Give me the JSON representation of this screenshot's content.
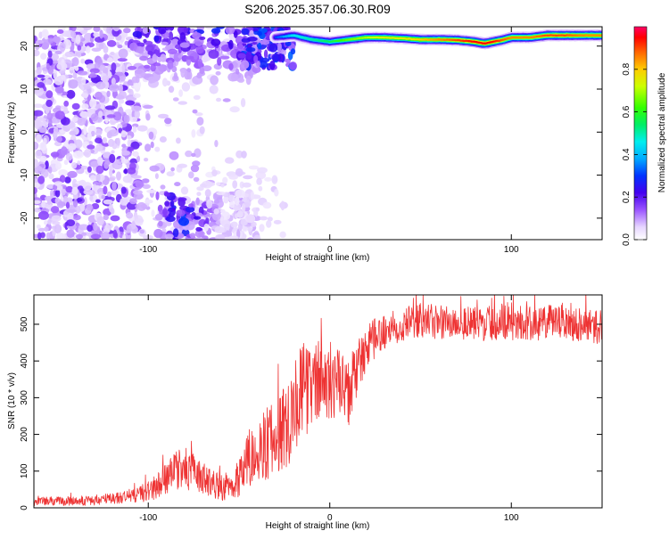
{
  "title": "S206.2025.357.06.30.R09",
  "chart_data": [
    {
      "type": "heatmap",
      "xlabel": "Height of straight line (km)",
      "ylabel": "Frequency (Hz)",
      "xlim": [
        -163,
        150
      ],
      "ylim": [
        -25,
        24.5
      ],
      "xticks": [
        -100,
        0,
        100
      ],
      "yticks": [
        -20,
        -10,
        0,
        10,
        20
      ],
      "xtick_labels": [
        "-100",
        "0",
        "100"
      ],
      "ytick_labels": [
        "-20",
        "-10",
        "0",
        "10",
        "20"
      ],
      "colorbar": {
        "label": "Normalized spectral amplitude",
        "range": [
          0,
          1
        ],
        "ticks": [
          0.0,
          0.2,
          0.4,
          0.6,
          0.8
        ],
        "tick_labels": [
          "0.0",
          "0.2",
          "0.4",
          "0.6",
          "0.8"
        ]
      },
      "ridge": {
        "x": [
          -30,
          -20,
          -10,
          0,
          10,
          20,
          30,
          40,
          50,
          60,
          70,
          80,
          85,
          90,
          95,
          100,
          110,
          120,
          130,
          140,
          150
        ],
        "frequency": [
          22.0,
          22.5,
          21.5,
          21.0,
          21.5,
          22.0,
          22.0,
          21.8,
          21.5,
          21.5,
          21.4,
          21.0,
          20.6,
          21.0,
          21.4,
          22.0,
          22.0,
          22.5,
          22.5,
          22.5,
          22.5
        ],
        "amplitude": [
          0.3,
          0.45,
          0.5,
          0.55,
          0.65,
          0.7,
          0.75,
          0.75,
          0.8,
          0.85,
          0.9,
          0.95,
          0.95,
          0.95,
          0.9,
          0.85,
          0.85,
          0.9,
          0.9,
          0.85,
          0.85
        ]
      }
    },
    {
      "type": "line",
      "xlabel": "Height of straight line (km)",
      "ylabel": "SNR (10 * v/v)",
      "xlim": [
        -163,
        150
      ],
      "ylim": [
        0,
        580
      ],
      "xticks": [
        -100,
        0,
        100
      ],
      "yticks": [
        0,
        100,
        200,
        300,
        400,
        500
      ],
      "xtick_labels": [
        "-100",
        "0",
        "100"
      ],
      "ytick_labels": [
        "0",
        "100",
        "200",
        "300",
        "400",
        "500"
      ],
      "color": "#ee3333",
      "series": [
        {
          "x": [
            -163,
            -150,
            -140,
            -130,
            -120,
            -110,
            -100,
            -95,
            -90,
            -85,
            -80,
            -75,
            -70,
            -65,
            -60,
            -55,
            -50,
            -45,
            -40,
            -35,
            -30,
            -25,
            -20,
            -15,
            -10,
            -5,
            0,
            5,
            10,
            15,
            20,
            25,
            30,
            35,
            40,
            50,
            60,
            70,
            80,
            90,
            100,
            110,
            120,
            130,
            140,
            150
          ],
          "mean": [
            18,
            18,
            19,
            20,
            25,
            32,
            45,
            60,
            80,
            100,
            110,
            95,
            80,
            70,
            55,
            60,
            90,
            130,
            160,
            170,
            190,
            220,
            280,
            320,
            330,
            350,
            330,
            340,
            300,
            380,
            430,
            460,
            480,
            490,
            500,
            510,
            505,
            505,
            500,
            505,
            505,
            500,
            505,
            505,
            500,
            490
          ],
          "spread": [
            8,
            8,
            8,
            9,
            10,
            12,
            18,
            22,
            28,
            32,
            38,
            32,
            28,
            26,
            22,
            28,
            38,
            50,
            55,
            60,
            70,
            80,
            85,
            80,
            75,
            70,
            60,
            60,
            60,
            50,
            40,
            35,
            30,
            30,
            30,
            30,
            30,
            30,
            30,
            30,
            30,
            30,
            30,
            30,
            30,
            30
          ]
        }
      ]
    }
  ]
}
